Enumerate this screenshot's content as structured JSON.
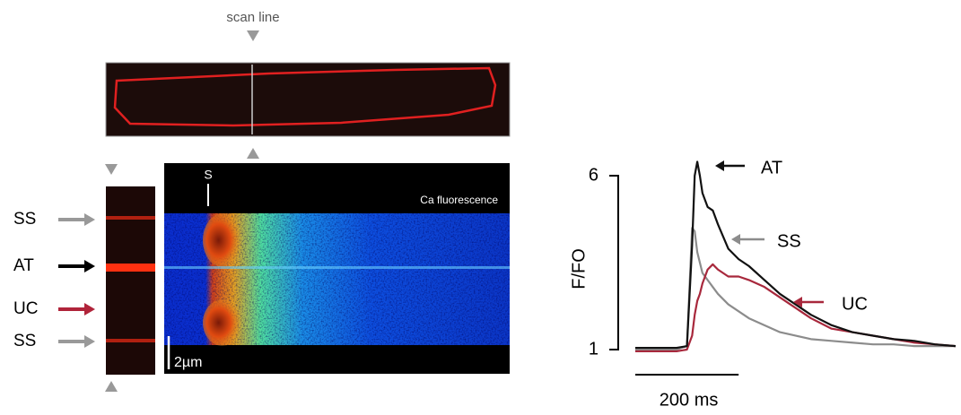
{
  "figure": {
    "scan_label": "scan line",
    "image_label": "Ca fluorescence",
    "stim_label": "S",
    "length_scale_label": "2µm",
    "profile_labels": [
      "SS",
      "AT",
      "UC",
      "SS"
    ]
  },
  "chart_data": {
    "type": "line",
    "y_label": "F/FO",
    "x": [
      0,
      40,
      80,
      100,
      110,
      115,
      120,
      125,
      130,
      140,
      150,
      160,
      180,
      200,
      220,
      250,
      280,
      310,
      340,
      380,
      420,
      460,
      500,
      540,
      580,
      620
    ],
    "xlim": [
      0,
      620
    ],
    "ylim": [
      1,
      6
    ],
    "yticks": [
      1,
      6
    ],
    "scale_bar": {
      "value": 200,
      "label": "200 ms"
    },
    "series": [
      {
        "name": "AT",
        "color": "#111111",
        "values": [
          1.05,
          1.05,
          1.05,
          1.1,
          4.0,
          6.0,
          6.4,
          6.0,
          5.5,
          5.1,
          5.0,
          4.6,
          3.9,
          3.6,
          3.4,
          3.0,
          2.6,
          2.3,
          2.0,
          1.7,
          1.5,
          1.4,
          1.3,
          1.25,
          1.15,
          1.1
        ]
      },
      {
        "name": "SS",
        "color": "#8c8c8c",
        "values": [
          1.0,
          1.0,
          1.0,
          1.1,
          4.5,
          4.4,
          3.8,
          3.5,
          3.2,
          3.0,
          2.8,
          2.6,
          2.3,
          2.1,
          1.9,
          1.7,
          1.5,
          1.4,
          1.3,
          1.25,
          1.2,
          1.15,
          1.15,
          1.1,
          1.1,
          1.1
        ]
      },
      {
        "name": "UC",
        "color": "#a8283c",
        "values": [
          0.95,
          0.95,
          0.95,
          1.0,
          1.4,
          2.0,
          2.4,
          2.6,
          2.9,
          3.3,
          3.45,
          3.3,
          3.1,
          3.1,
          3.0,
          2.8,
          2.5,
          2.2,
          1.9,
          1.6,
          1.5,
          1.4,
          1.3,
          1.2,
          1.15,
          1.1
        ]
      }
    ]
  }
}
